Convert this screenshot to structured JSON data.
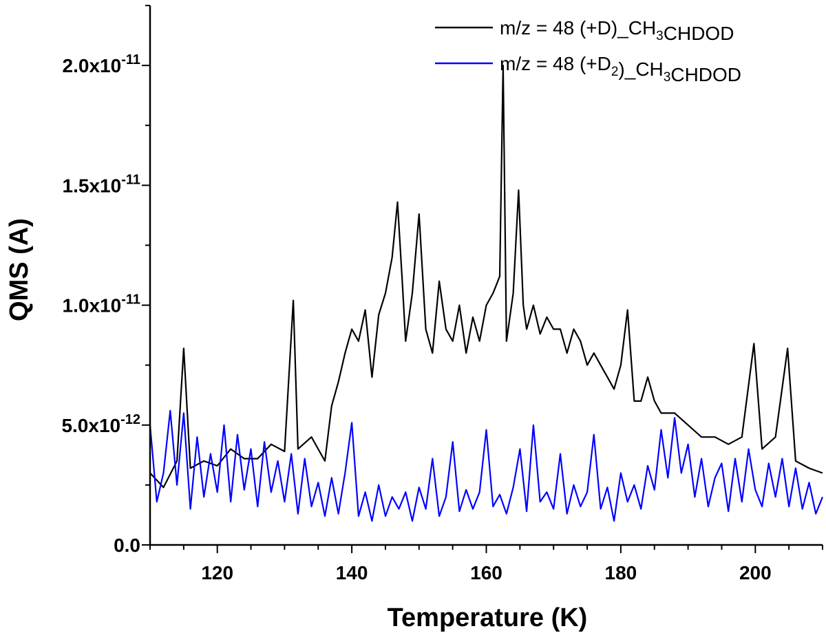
{
  "chart_data": {
    "type": "line",
    "title": "",
    "xlabel": "Temperature (K)",
    "ylabel": "QMS (A)",
    "xlim": [
      110,
      210
    ],
    "ylim": [
      0,
      2.25e-11
    ],
    "x_ticks": [
      {
        "value": 120,
        "label": "120"
      },
      {
        "value": 140,
        "label": "140"
      },
      {
        "value": 160,
        "label": "160"
      },
      {
        "value": 180,
        "label": "180"
      },
      {
        "value": 200,
        "label": "200"
      }
    ],
    "y_ticks": [
      {
        "value": 0,
        "mantissa": "0.0",
        "exponent": ""
      },
      {
        "value": 5e-12,
        "mantissa": "5.0x10",
        "exponent": "-12"
      },
      {
        "value": 1e-11,
        "mantissa": "1.0x10",
        "exponent": "-11"
      },
      {
        "value": 1.5e-11,
        "mantissa": "1.5x10",
        "exponent": "-11"
      },
      {
        "value": 2e-11,
        "mantissa": "2.0x10",
        "exponent": "-11"
      }
    ],
    "series": [
      {
        "name": "m/z = 48 (+D)_CH3CHDOD",
        "legend_parts": [
          [
            "m/z = 48 (+D)_CH",
            ""
          ],
          [
            "3",
            "sub"
          ],
          [
            "CHDOD",
            ""
          ]
        ],
        "color": "#000000",
        "x": [
          110,
          112,
          114,
          115,
          116,
          118,
          120,
          122,
          124,
          126,
          128,
          130,
          131.3,
          132,
          134,
          136,
          137,
          138,
          139,
          140,
          141,
          142,
          143,
          144,
          145,
          146,
          146.8,
          147.5,
          148,
          149,
          150,
          151,
          152,
          153,
          154,
          155,
          156,
          157,
          158,
          159,
          160,
          161,
          162,
          162.5,
          163,
          164,
          164.8,
          165.5,
          166,
          167,
          168,
          169,
          170,
          171,
          172,
          173,
          174,
          175,
          176,
          177,
          178,
          179,
          180,
          181,
          182,
          183,
          184,
          185,
          186,
          188,
          190,
          192,
          194,
          196,
          198,
          199.8,
          201,
          203,
          204.8,
          206,
          208,
          210
        ],
        "y": [
          3e-12,
          2.4e-12,
          3.5e-12,
          8.2e-12,
          3.2e-12,
          3.5e-12,
          3.3e-12,
          4e-12,
          3.6e-12,
          3.6e-12,
          4.2e-12,
          3.9e-12,
          1.02e-11,
          4e-12,
          4.5e-12,
          3.5e-12,
          5.8e-12,
          6.8e-12,
          8e-12,
          9e-12,
          8.5e-12,
          9.8e-12,
          7e-12,
          9.6e-12,
          1.05e-11,
          1.2e-11,
          1.43e-11,
          1.1e-11,
          8.5e-12,
          1.05e-11,
          1.38e-11,
          9e-12,
          8e-12,
          1.1e-11,
          9e-12,
          8.5e-12,
          1e-11,
          8e-12,
          9.5e-12,
          8.5e-12,
          1e-11,
          1.05e-11,
          1.12e-11,
          2e-11,
          8.5e-12,
          1.05e-11,
          1.48e-11,
          1e-11,
          9e-12,
          1e-11,
          8.8e-12,
          9.5e-12,
          9e-12,
          9e-12,
          8e-12,
          9e-12,
          8.5e-12,
          7.5e-12,
          8e-12,
          7.5e-12,
          7e-12,
          6.5e-12,
          7.5e-12,
          9.8e-12,
          6e-12,
          6e-12,
          7e-12,
          6e-12,
          5.5e-12,
          5.5e-12,
          5e-12,
          4.5e-12,
          4.5e-12,
          4.2e-12,
          4.5e-12,
          8.4e-12,
          4e-12,
          4.5e-12,
          8.2e-12,
          3.5e-12,
          3.2e-12,
          3e-12
        ]
      },
      {
        "name": "m/z = 48 (+D2)_CH3CHDOD",
        "legend_parts": [
          [
            "m/z = 48 (+D",
            ""
          ],
          [
            "2",
            "sub"
          ],
          [
            ")_CH",
            ""
          ],
          [
            "3",
            "sub"
          ],
          [
            "CHDOD",
            ""
          ]
        ],
        "color": "#0000ff",
        "x": [
          110,
          111,
          112,
          113,
          114,
          115,
          116,
          117,
          118,
          119,
          120,
          121,
          122,
          123,
          124,
          125,
          126,
          127,
          128,
          129,
          130,
          131,
          132,
          133,
          134,
          135,
          136,
          137,
          138,
          139,
          140,
          141,
          142,
          143,
          144,
          145,
          146,
          147,
          148,
          149,
          150,
          151,
          152,
          153,
          154,
          155,
          156,
          157,
          158,
          159,
          160,
          161,
          162,
          163,
          164,
          165,
          166,
          167,
          168,
          169,
          170,
          171,
          172,
          173,
          174,
          175,
          176,
          177,
          178,
          179,
          180,
          181,
          182,
          183,
          184,
          185,
          186,
          187,
          188,
          189,
          190,
          191,
          192,
          193,
          194,
          195,
          196,
          197,
          198,
          199,
          200,
          201,
          202,
          203,
          204,
          205,
          206,
          207,
          208,
          209,
          210
        ],
        "y": [
          5e-12,
          1.8e-12,
          3e-12,
          5.6e-12,
          2.5e-12,
          5.5e-12,
          1.5e-12,
          4.5e-12,
          2e-12,
          3.8e-12,
          2.2e-12,
          5e-12,
          1.8e-12,
          4.6e-12,
          2.3e-12,
          4e-12,
          1.6e-12,
          4.3e-12,
          2.2e-12,
          3.5e-12,
          1.8e-12,
          3.8e-12,
          1.3e-12,
          3.6e-12,
          1.6e-12,
          2.6e-12,
          1.2e-12,
          2.8e-12,
          1.3e-12,
          3e-12,
          5.1e-12,
          1.2e-12,
          2.2e-12,
          1e-12,
          2.5e-12,
          1.2e-12,
          2e-12,
          1.5e-12,
          2.2e-12,
          1e-12,
          2.4e-12,
          1.5e-12,
          3.6e-12,
          1.2e-12,
          2e-12,
          4.3e-12,
          1.4e-12,
          2.3e-12,
          1.5e-12,
          2.2e-12,
          4.8e-12,
          1.6e-12,
          2.1e-12,
          1.3e-12,
          2.4e-12,
          4e-12,
          1.4e-12,
          5e-12,
          1.8e-12,
          2.2e-12,
          1.5e-12,
          3.8e-12,
          1.3e-12,
          2.5e-12,
          1.6e-12,
          2.2e-12,
          4.6e-12,
          1.5e-12,
          2.4e-12,
          1e-12,
          3e-12,
          1.8e-12,
          2.5e-12,
          1.5e-12,
          3.3e-12,
          2.3e-12,
          4.8e-12,
          2.8e-12,
          5.3e-12,
          3e-12,
          4.2e-12,
          2e-12,
          3.6e-12,
          1.6e-12,
          2.8e-12,
          3.4e-12,
          1.4e-12,
          3.6e-12,
          1.8e-12,
          4e-12,
          2.3e-12,
          1.6e-12,
          3.4e-12,
          2e-12,
          3.6e-12,
          1.6e-12,
          3.2e-12,
          1.5e-12,
          2.6e-12,
          1.3e-12,
          2e-12
        ]
      }
    ],
    "legend_position": "top-right"
  }
}
